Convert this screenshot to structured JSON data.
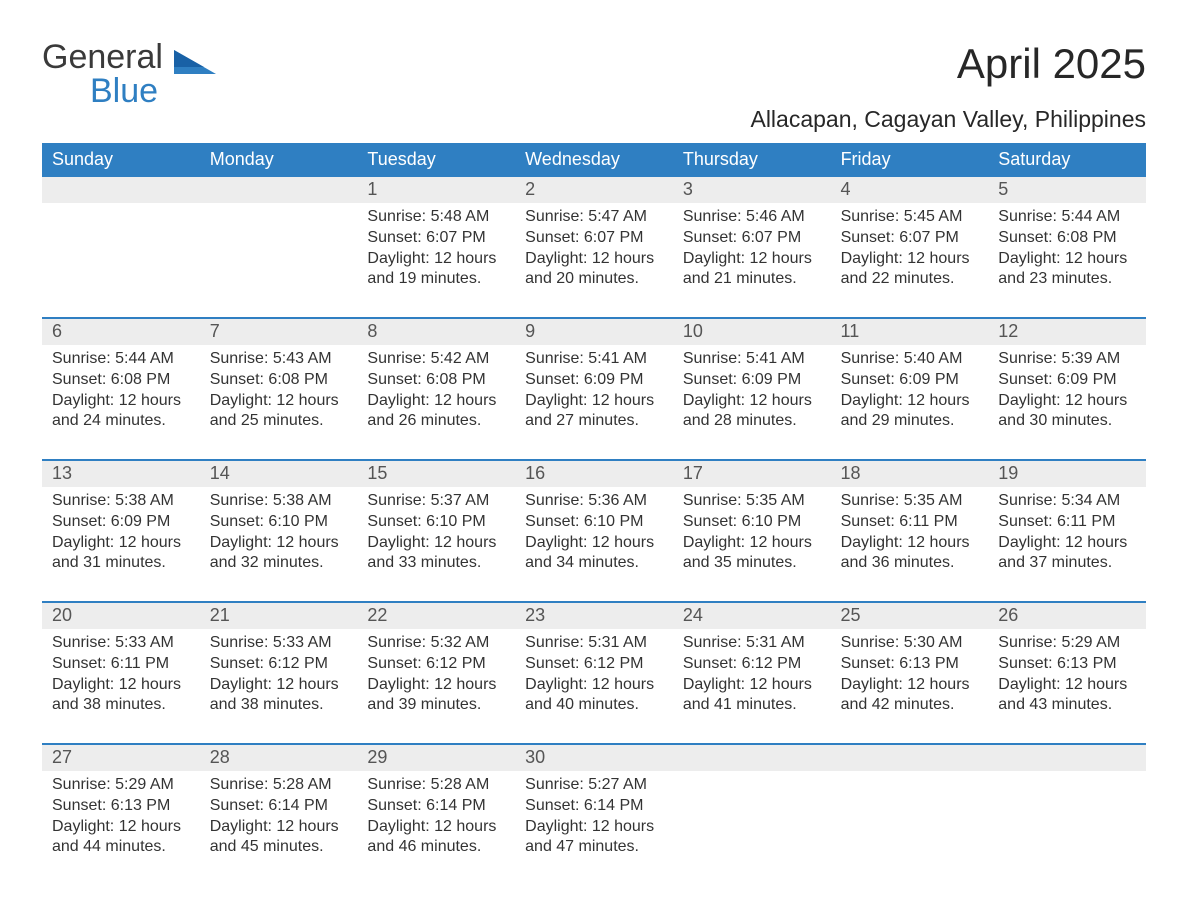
{
  "brand": {
    "text1": "General",
    "text2": "Blue",
    "color1": "#3a3a3a",
    "color2": "#2f7fc2"
  },
  "title": "April 2025",
  "subtitle": "Allacapan, Cagayan Valley, Philippines",
  "colors": {
    "header_bg": "#2f7fc2",
    "header_text": "#ffffff",
    "daynum_bg": "#ededed",
    "body_text": "#333333",
    "rule": "#2f7fc2",
    "page_bg": "#ffffff"
  },
  "fonts": {
    "title": 42,
    "subtitle": 23,
    "header": 18,
    "daynum": 18,
    "body": 16
  },
  "daysOfWeek": [
    "Sunday",
    "Monday",
    "Tuesday",
    "Wednesday",
    "Thursday",
    "Friday",
    "Saturday"
  ],
  "labels": {
    "sunrise": "Sunrise:",
    "sunset": "Sunset:",
    "daylight": "Daylight:"
  },
  "weeks": [
    [
      null,
      null,
      {
        "n": "1",
        "sunrise": "5:48 AM",
        "sunset": "6:07 PM",
        "daylight": "12 hours and 19 minutes."
      },
      {
        "n": "2",
        "sunrise": "5:47 AM",
        "sunset": "6:07 PM",
        "daylight": "12 hours and 20 minutes."
      },
      {
        "n": "3",
        "sunrise": "5:46 AM",
        "sunset": "6:07 PM",
        "daylight": "12 hours and 21 minutes."
      },
      {
        "n": "4",
        "sunrise": "5:45 AM",
        "sunset": "6:07 PM",
        "daylight": "12 hours and 22 minutes."
      },
      {
        "n": "5",
        "sunrise": "5:44 AM",
        "sunset": "6:08 PM",
        "daylight": "12 hours and 23 minutes."
      }
    ],
    [
      {
        "n": "6",
        "sunrise": "5:44 AM",
        "sunset": "6:08 PM",
        "daylight": "12 hours and 24 minutes."
      },
      {
        "n": "7",
        "sunrise": "5:43 AM",
        "sunset": "6:08 PM",
        "daylight": "12 hours and 25 minutes."
      },
      {
        "n": "8",
        "sunrise": "5:42 AM",
        "sunset": "6:08 PM",
        "daylight": "12 hours and 26 minutes."
      },
      {
        "n": "9",
        "sunrise": "5:41 AM",
        "sunset": "6:09 PM",
        "daylight": "12 hours and 27 minutes."
      },
      {
        "n": "10",
        "sunrise": "5:41 AM",
        "sunset": "6:09 PM",
        "daylight": "12 hours and 28 minutes."
      },
      {
        "n": "11",
        "sunrise": "5:40 AM",
        "sunset": "6:09 PM",
        "daylight": "12 hours and 29 minutes."
      },
      {
        "n": "12",
        "sunrise": "5:39 AM",
        "sunset": "6:09 PM",
        "daylight": "12 hours and 30 minutes."
      }
    ],
    [
      {
        "n": "13",
        "sunrise": "5:38 AM",
        "sunset": "6:09 PM",
        "daylight": "12 hours and 31 minutes."
      },
      {
        "n": "14",
        "sunrise": "5:38 AM",
        "sunset": "6:10 PM",
        "daylight": "12 hours and 32 minutes."
      },
      {
        "n": "15",
        "sunrise": "5:37 AM",
        "sunset": "6:10 PM",
        "daylight": "12 hours and 33 minutes."
      },
      {
        "n": "16",
        "sunrise": "5:36 AM",
        "sunset": "6:10 PM",
        "daylight": "12 hours and 34 minutes."
      },
      {
        "n": "17",
        "sunrise": "5:35 AM",
        "sunset": "6:10 PM",
        "daylight": "12 hours and 35 minutes."
      },
      {
        "n": "18",
        "sunrise": "5:35 AM",
        "sunset": "6:11 PM",
        "daylight": "12 hours and 36 minutes."
      },
      {
        "n": "19",
        "sunrise": "5:34 AM",
        "sunset": "6:11 PM",
        "daylight": "12 hours and 37 minutes."
      }
    ],
    [
      {
        "n": "20",
        "sunrise": "5:33 AM",
        "sunset": "6:11 PM",
        "daylight": "12 hours and 38 minutes."
      },
      {
        "n": "21",
        "sunrise": "5:33 AM",
        "sunset": "6:12 PM",
        "daylight": "12 hours and 38 minutes."
      },
      {
        "n": "22",
        "sunrise": "5:32 AM",
        "sunset": "6:12 PM",
        "daylight": "12 hours and 39 minutes."
      },
      {
        "n": "23",
        "sunrise": "5:31 AM",
        "sunset": "6:12 PM",
        "daylight": "12 hours and 40 minutes."
      },
      {
        "n": "24",
        "sunrise": "5:31 AM",
        "sunset": "6:12 PM",
        "daylight": "12 hours and 41 minutes."
      },
      {
        "n": "25",
        "sunrise": "5:30 AM",
        "sunset": "6:13 PM",
        "daylight": "12 hours and 42 minutes."
      },
      {
        "n": "26",
        "sunrise": "5:29 AM",
        "sunset": "6:13 PM",
        "daylight": "12 hours and 43 minutes."
      }
    ],
    [
      {
        "n": "27",
        "sunrise": "5:29 AM",
        "sunset": "6:13 PM",
        "daylight": "12 hours and 44 minutes."
      },
      {
        "n": "28",
        "sunrise": "5:28 AM",
        "sunset": "6:14 PM",
        "daylight": "12 hours and 45 minutes."
      },
      {
        "n": "29",
        "sunrise": "5:28 AM",
        "sunset": "6:14 PM",
        "daylight": "12 hours and 46 minutes."
      },
      {
        "n": "30",
        "sunrise": "5:27 AM",
        "sunset": "6:14 PM",
        "daylight": "12 hours and 47 minutes."
      },
      null,
      null,
      null
    ]
  ]
}
